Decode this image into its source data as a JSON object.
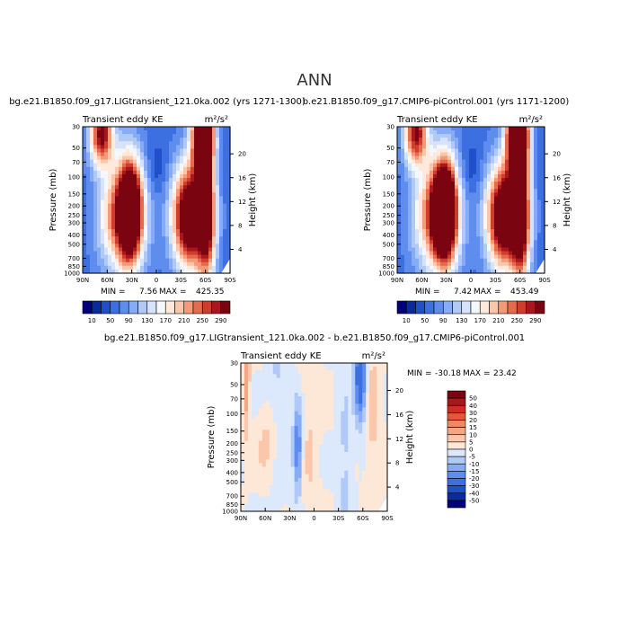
{
  "figure": {
    "title": "ANN"
  },
  "colors": {
    "diverging": [
      "#00007F",
      "#0A2A9E",
      "#1F4FC9",
      "#3C6FE0",
      "#5F8DEE",
      "#86ACF5",
      "#B0C9F7",
      "#D7E3FA",
      "#F4F8FD",
      "#FEE9DB",
      "#FBC6AA",
      "#F39B79",
      "#E66B4E",
      "#D03D2D",
      "#A9171C",
      "#7A0510"
    ]
  },
  "chart_data": [
    {
      "type": "heatmap",
      "title": "bg.e21.B1850.f09_g17.LIGtransient_121.0ka.002 (yrs 1271-1300)",
      "left_label": "Transient eddy KE",
      "right_label": "m²/s²",
      "ylabel": "Pressure (mb)",
      "ylabel_right": "Height (km)",
      "x_ticks": [
        "90N",
        "60N",
        "30N",
        "0",
        "30S",
        "60S",
        "90S"
      ],
      "y_ticks": [
        "30",
        "50",
        "70",
        "100",
        "150",
        "200",
        "250",
        "300",
        "400",
        "500",
        "700",
        "850",
        "1000"
      ],
      "y_ticks_right": [
        "4",
        "8",
        "12",
        "16",
        "20"
      ],
      "min_label": "MIN =",
      "min": "7.56",
      "max_label": "MAX =",
      "max": "425.35",
      "colorbar_levels": [
        "10",
        "50",
        "90",
        "130",
        "170",
        "210",
        "250",
        "290"
      ],
      "features": [
        {
          "lat": 67,
          "p": 35,
          "v": 300,
          "sx": 10,
          "sy": 0.18
        },
        {
          "lat": -57,
          "p": 35,
          "v": 420,
          "sx": 9,
          "sy": 0.22
        },
        {
          "lat": 32,
          "p": 220,
          "v": 330,
          "sx": 10,
          "sy": 0.28
        },
        {
          "lat": 40,
          "p": 260,
          "v": 200,
          "sx": 20,
          "sy": 0.35
        },
        {
          "lat": -40,
          "p": 260,
          "v": 320,
          "sx": 14,
          "sy": 0.3
        },
        {
          "lat": -62,
          "p": 300,
          "v": 220,
          "sx": 8,
          "sy": 0.35
        },
        {
          "lat": -60,
          "p": 120,
          "v": 120,
          "sx": 8,
          "sy": 0.6
        }
      ]
    },
    {
      "type": "heatmap",
      "title": "b.e21.B1850.f09_g17.CMIP6-piControl.001 (yrs 1171-1200)",
      "left_label": "Transient eddy KE",
      "right_label": "m²/s²",
      "ylabel": "Pressure (mb)",
      "ylabel_right": "Height (km)",
      "x_ticks": [
        "90N",
        "60N",
        "30N",
        "0",
        "30S",
        "60S",
        "90S"
      ],
      "y_ticks": [
        "30",
        "50",
        "70",
        "100",
        "150",
        "200",
        "250",
        "300",
        "400",
        "500",
        "700",
        "850",
        "1000"
      ],
      "y_ticks_right": [
        "4",
        "8",
        "12",
        "16",
        "20"
      ],
      "min_label": "MIN =",
      "min": "7.42",
      "max_label": "MAX =",
      "max": "453.49",
      "colorbar_levels": [
        "10",
        "50",
        "90",
        "130",
        "170",
        "210",
        "250",
        "290"
      ],
      "features": [
        {
          "lat": 67,
          "p": 35,
          "v": 290,
          "sx": 10,
          "sy": 0.18
        },
        {
          "lat": -57,
          "p": 35,
          "v": 450,
          "sx": 9,
          "sy": 0.22
        },
        {
          "lat": 32,
          "p": 220,
          "v": 380,
          "sx": 10,
          "sy": 0.28
        },
        {
          "lat": 40,
          "p": 260,
          "v": 200,
          "sx": 20,
          "sy": 0.35
        },
        {
          "lat": -40,
          "p": 260,
          "v": 330,
          "sx": 14,
          "sy": 0.3
        },
        {
          "lat": -62,
          "p": 300,
          "v": 230,
          "sx": 8,
          "sy": 0.35
        },
        {
          "lat": -60,
          "p": 120,
          "v": 130,
          "sx": 8,
          "sy": 0.6
        }
      ]
    },
    {
      "type": "heatmap",
      "title": "bg.e21.B1850.f09_g17.LIGtransient_121.0ka.002 - b.e21.B1850.f09_g17.CMIP6-piControl.001",
      "left_label": "Transient eddy KE",
      "right_label": "m²/s²",
      "ylabel": "Pressure (mb)",
      "ylabel_right": "Height (km)",
      "x_ticks": [
        "90N",
        "60N",
        "30N",
        "0",
        "30S",
        "60S",
        "90S"
      ],
      "y_ticks": [
        "30",
        "50",
        "70",
        "100",
        "150",
        "200",
        "250",
        "300",
        "400",
        "500",
        "700",
        "850",
        "1000"
      ],
      "y_ticks_right": [
        "4",
        "8",
        "12",
        "16",
        "20"
      ],
      "min_label": "MIN =",
      "min": "-30.18",
      "max_label": "MAX =",
      "max": "23.42",
      "colorbar_levels": [
        "50",
        "40",
        "30",
        "20",
        "15",
        "10",
        "5",
        "0",
        "-5",
        "-10",
        "-15",
        "-20",
        "-30",
        "-40",
        "-50"
      ],
      "features": [
        {
          "lat": -57,
          "p": 40,
          "v": -30,
          "sx": 5,
          "sy": 0.25
        },
        {
          "lat": 20,
          "p": 230,
          "v": -22,
          "sx": 4,
          "sy": 0.25
        },
        {
          "lat": 83,
          "p": 40,
          "v": 14,
          "sx": 3,
          "sy": 0.35
        },
        {
          "lat": 55,
          "p": 200,
          "v": 8,
          "sx": 10,
          "sy": 0.2
        },
        {
          "lat": -72,
          "p": 100,
          "v": 7,
          "sx": 6,
          "sy": 0.6
        },
        {
          "lat": 45,
          "p": 60,
          "v": -6,
          "sx": 8,
          "sy": 0.6
        },
        {
          "lat": -38,
          "p": 300,
          "v": -7,
          "sx": 6,
          "sy": 0.4
        },
        {
          "lat": 5,
          "p": 150,
          "v": 5,
          "sx": 8,
          "sy": 0.9
        }
      ]
    }
  ]
}
